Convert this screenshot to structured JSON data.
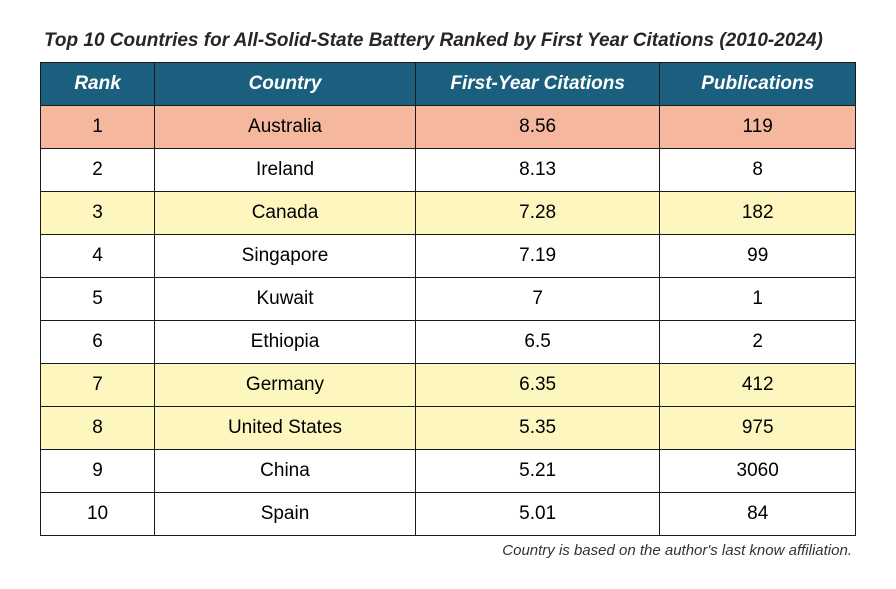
{
  "title": "Top 10 Countries for All-Solid-State Battery Ranked by First Year Citations (2010-2024)",
  "footnote": "Country is based on the author's last know affiliation.",
  "table": {
    "columns": [
      "Rank",
      "Country",
      "First-Year Citations",
      "Publications"
    ],
    "col_widths_pct": [
      14,
      32,
      30,
      24
    ],
    "header_bg": "#1b5f7e",
    "header_fg": "#ffffff",
    "border_color": "#1a1a1a",
    "cell_fontsize": 19,
    "highlight_colors": {
      "orange": "#f5b79e",
      "yellow": "#fdf6be"
    },
    "rows": [
      {
        "rank": "1",
        "country": "Australia",
        "citations": "8.56",
        "publications": "119",
        "highlight": "orange"
      },
      {
        "rank": "2",
        "country": "Ireland",
        "citations": "8.13",
        "publications": "8",
        "highlight": null
      },
      {
        "rank": "3",
        "country": "Canada",
        "citations": "7.28",
        "publications": "182",
        "highlight": "yellow"
      },
      {
        "rank": "4",
        "country": "Singapore",
        "citations": "7.19",
        "publications": "99",
        "highlight": null
      },
      {
        "rank": "5",
        "country": "Kuwait",
        "citations": "7",
        "publications": "1",
        "highlight": null
      },
      {
        "rank": "6",
        "country": "Ethiopia",
        "citations": "6.5",
        "publications": "2",
        "highlight": null
      },
      {
        "rank": "7",
        "country": "Germany",
        "citations": "6.35",
        "publications": "412",
        "highlight": "yellow"
      },
      {
        "rank": "8",
        "country": "United States",
        "citations": "5.35",
        "publications": "975",
        "highlight": "yellow"
      },
      {
        "rank": "9",
        "country": "China",
        "citations": "5.21",
        "publications": "3060",
        "highlight": null
      },
      {
        "rank": "10",
        "country": "Spain",
        "citations": "5.01",
        "publications": "84",
        "highlight": null
      }
    ]
  }
}
